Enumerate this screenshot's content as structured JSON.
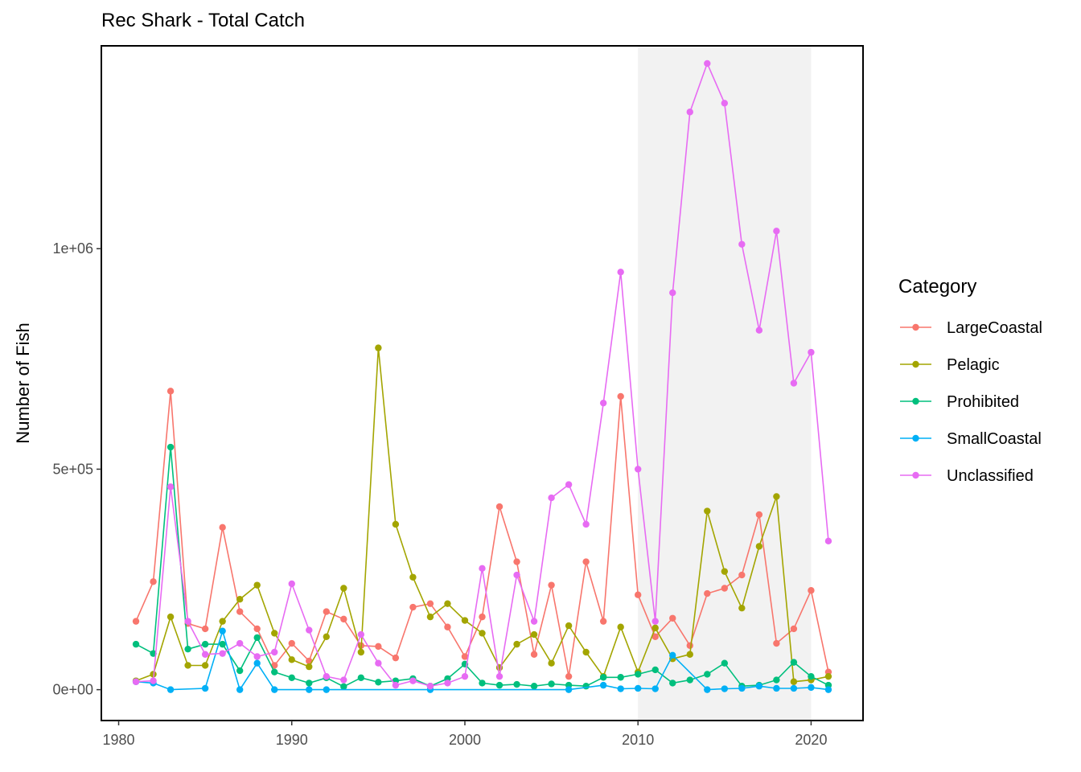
{
  "chart_data": {
    "type": "line",
    "title": "Rec Shark - Total Catch",
    "xlabel": "",
    "ylabel": "Number of Fish",
    "xlim": [
      1979,
      2023
    ],
    "ylim": [
      -70000,
      1460000
    ],
    "x_ticks": [
      1980,
      1990,
      2000,
      2010,
      2020
    ],
    "x_tick_labels": [
      "1980",
      "1990",
      "2000",
      "2010",
      "2020"
    ],
    "y_ticks": [
      0,
      500000,
      1000000
    ],
    "y_tick_labels": [
      "0e+00",
      "5e+05",
      "1e+06"
    ],
    "highlight_band": {
      "x_start": 2010,
      "x_end": 2020,
      "color": "#f2f2f2"
    },
    "grid": false,
    "legend": {
      "title": "Category",
      "position": "right"
    },
    "series": [
      {
        "name": "LargeCoastal",
        "color": "#F8766D",
        "x": [
          1981,
          1982,
          1983,
          1984,
          1985,
          1986,
          1987,
          1988,
          1989,
          1990,
          1991,
          1992,
          1993,
          1994,
          1995,
          1996,
          1997,
          1998,
          1999,
          2000,
          2001,
          2002,
          2003,
          2004,
          2005,
          2006,
          2007,
          2008,
          2009,
          2010,
          2011,
          2012,
          2013,
          2014,
          2015,
          2016,
          2017,
          2018,
          2019,
          2020,
          2021
        ],
        "values": [
          155000,
          245000,
          677000,
          150000,
          138000,
          368000,
          177000,
          138000,
          55000,
          105000,
          65000,
          177000,
          160000,
          100000,
          98000,
          72000,
          187000,
          195000,
          142000,
          75000,
          165000,
          415000,
          290000,
          80000,
          237000,
          30000,
          290000,
          155000,
          665000,
          215000,
          120000,
          162000,
          100000,
          218000,
          230000,
          260000,
          397000,
          105000,
          138000,
          225000,
          40000
        ]
      },
      {
        "name": "Pelagic",
        "color": "#A3A500",
        "x": [
          1981,
          1982,
          1983,
          1984,
          1985,
          1986,
          1987,
          1988,
          1989,
          1990,
          1991,
          1992,
          1993,
          1994,
          1995,
          1996,
          1997,
          1998,
          1999,
          2000,
          2001,
          2002,
          2003,
          2004,
          2005,
          2006,
          2007,
          2008,
          2009,
          2010,
          2011,
          2012,
          2013,
          2014,
          2015,
          2016,
          2017,
          2018,
          2019,
          2020,
          2021
        ],
        "values": [
          20000,
          35000,
          165000,
          55000,
          55000,
          155000,
          205000,
          237000,
          128000,
          68000,
          52000,
          120000,
          230000,
          85000,
          775000,
          375000,
          255000,
          165000,
          195000,
          157000,
          128000,
          50000,
          103000,
          125000,
          60000,
          145000,
          85000,
          30000,
          142000,
          40000,
          140000,
          70000,
          80000,
          405000,
          268000,
          185000,
          325000,
          438000,
          18000,
          22000,
          30000
        ]
      },
      {
        "name": "Prohibited",
        "color": "#00BF7D",
        "x": [
          1981,
          1982,
          1983,
          1984,
          1985,
          1986,
          1987,
          1988,
          1989,
          1990,
          1991,
          1992,
          1993,
          1994,
          1995,
          1996,
          1997,
          1998,
          1999,
          2000,
          2001,
          2002,
          2003,
          2004,
          2005,
          2006,
          2007,
          2008,
          2009,
          2010,
          2011,
          2012,
          2013,
          2014,
          2015,
          2016,
          2017,
          2018,
          2019,
          2020,
          2021
        ],
        "values": [
          103000,
          82000,
          550000,
          92000,
          103000,
          103000,
          43000,
          118000,
          40000,
          27000,
          15000,
          27000,
          7000,
          27000,
          17000,
          20000,
          25000,
          8000,
          25000,
          58000,
          15000,
          10000,
          12000,
          8000,
          13000,
          10000,
          8000,
          28000,
          28000,
          35000,
          45000,
          15000,
          22000,
          35000,
          60000,
          8000,
          10000,
          22000,
          62000,
          30000,
          10000
        ]
      },
      {
        "name": "SmallCoastal",
        "color": "#00B0F6",
        "x": [
          1981,
          1982,
          1983,
          1985,
          1986,
          1987,
          1988,
          1989,
          1991,
          1992,
          1998,
          2006,
          2008,
          2009,
          2010,
          2011,
          2012,
          2014,
          2015,
          2016,
          2017,
          2018,
          2019,
          2020,
          2021
        ],
        "values": [
          18000,
          15000,
          0,
          3000,
          133000,
          0,
          60000,
          0,
          0,
          0,
          0,
          0,
          10000,
          2000,
          3000,
          2000,
          78000,
          0,
          2000,
          3000,
          8000,
          3000,
          3000,
          5000,
          0
        ]
      },
      {
        "name": "Unclassified",
        "color": "#E76BF3",
        "x": [
          1981,
          1982,
          1983,
          1984,
          1985,
          1986,
          1987,
          1988,
          1989,
          1990,
          1991,
          1992,
          1993,
          1994,
          1995,
          1996,
          1997,
          1998,
          1999,
          2000,
          2001,
          2002,
          2003,
          2004,
          2005,
          2006,
          2007,
          2008,
          2009,
          2010,
          2011,
          2012,
          2013,
          2014,
          2015,
          2016,
          2017,
          2018,
          2019,
          2020,
          2021
        ],
        "values": [
          18000,
          20000,
          460000,
          155000,
          80000,
          82000,
          105000,
          75000,
          85000,
          240000,
          135000,
          30000,
          22000,
          125000,
          60000,
          10000,
          20000,
          8000,
          15000,
          30000,
          275000,
          30000,
          260000,
          155000,
          435000,
          465000,
          375000,
          650000,
          947000,
          500000,
          155000,
          900000,
          1310000,
          1420000,
          1330000,
          1010000,
          815000,
          1040000,
          695000,
          765000,
          337000
        ]
      }
    ]
  }
}
